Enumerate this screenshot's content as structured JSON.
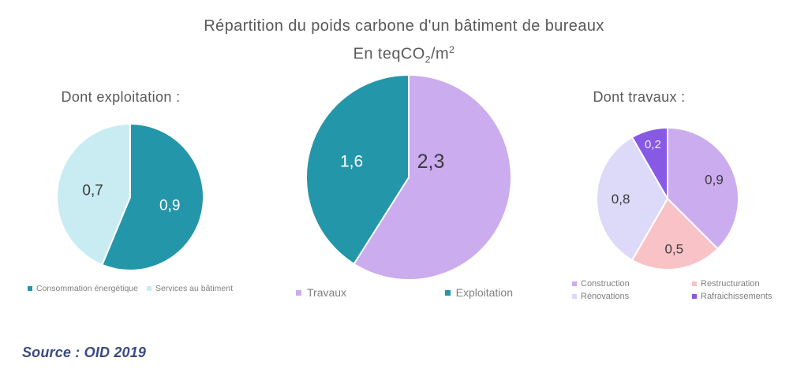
{
  "title": {
    "line1": "Répartition du poids carbone d'un bâtiment de bureaux",
    "subtitle_pre": "En teqCO",
    "subtitle_sub": "2",
    "subtitle_mid": "/m",
    "subtitle_sup": "2"
  },
  "source": "Source : OID 2019",
  "colors": {
    "background": "#ffffff",
    "title_text": "#595959",
    "legend_text": "#7f7f7f",
    "source_text": "#3a4a80",
    "teal": "#2496a9",
    "light_cyan": "#c9ecf3",
    "purple": "#cbacee",
    "pink": "#f9c2c7",
    "lavender": "#dcdaf8",
    "violet": "#8759e4"
  },
  "chart_data": [
    {
      "id": "exploitation",
      "type": "pie",
      "title": "Dont exploitation :",
      "unit": "teqCO2/m²",
      "start_angle": 0,
      "slices": [
        {
          "name": "Consommation énergétique",
          "value": 0.9,
          "display": "0,9",
          "color": "#2496a9",
          "label_color": "#ffffff",
          "label_r": 0.55,
          "label_size": 19
        },
        {
          "name": "Services au bâtiment",
          "value": 0.7,
          "display": "0,7",
          "color": "#c9ecf3",
          "label_color": "#3a3a3a",
          "label_r": 0.52,
          "label_size": 19
        }
      ]
    },
    {
      "id": "total",
      "type": "pie",
      "title": "Répartition du poids carbone d'un bâtiment de bureaux (En teqCO2/m²)",
      "unit": "teqCO2/m²",
      "start_angle": 0,
      "slices": [
        {
          "name": "Travaux",
          "value": 2.3,
          "display": "2,3",
          "color": "#cbacee",
          "label_color": "#3a3a3a",
          "label_r": 0.42,
          "label_at": [
            28,
            -21
          ],
          "label_size": 25
        },
        {
          "name": "Exploitation",
          "value": 1.6,
          "display": "1,6",
          "color": "#2496a9",
          "label_color": "#ffffff",
          "label_r": 0.58,
          "label_size": 21
        }
      ]
    },
    {
      "id": "travaux",
      "type": "pie",
      "title": "Dont travaux :",
      "unit": "teqCO2/m²",
      "start_angle": 0,
      "slices": [
        {
          "name": "Construction",
          "value": 0.9,
          "display": "0,9",
          "color": "#cbacee",
          "label_color": "#3a3a3a",
          "label_r": 0.71,
          "label_size": 17
        },
        {
          "name": "Restructuration",
          "value": 0.5,
          "display": "0,5",
          "color": "#f9c2c7",
          "label_color": "#3a3a3a",
          "label_r": 0.71,
          "label_size": 17
        },
        {
          "name": "Rénovations",
          "value": 0.8,
          "display": "0,8",
          "color": "#dcdaf8",
          "label_color": "#3a3a3a",
          "label_r": 0.66,
          "label_size": 17
        },
        {
          "name": "Rafraichissements",
          "value": 0.2,
          "display": "0,2",
          "color": "#8759e4",
          "label_color": "#f3ecfb",
          "label_r": 0.8,
          "label_size": 15
        }
      ]
    }
  ]
}
